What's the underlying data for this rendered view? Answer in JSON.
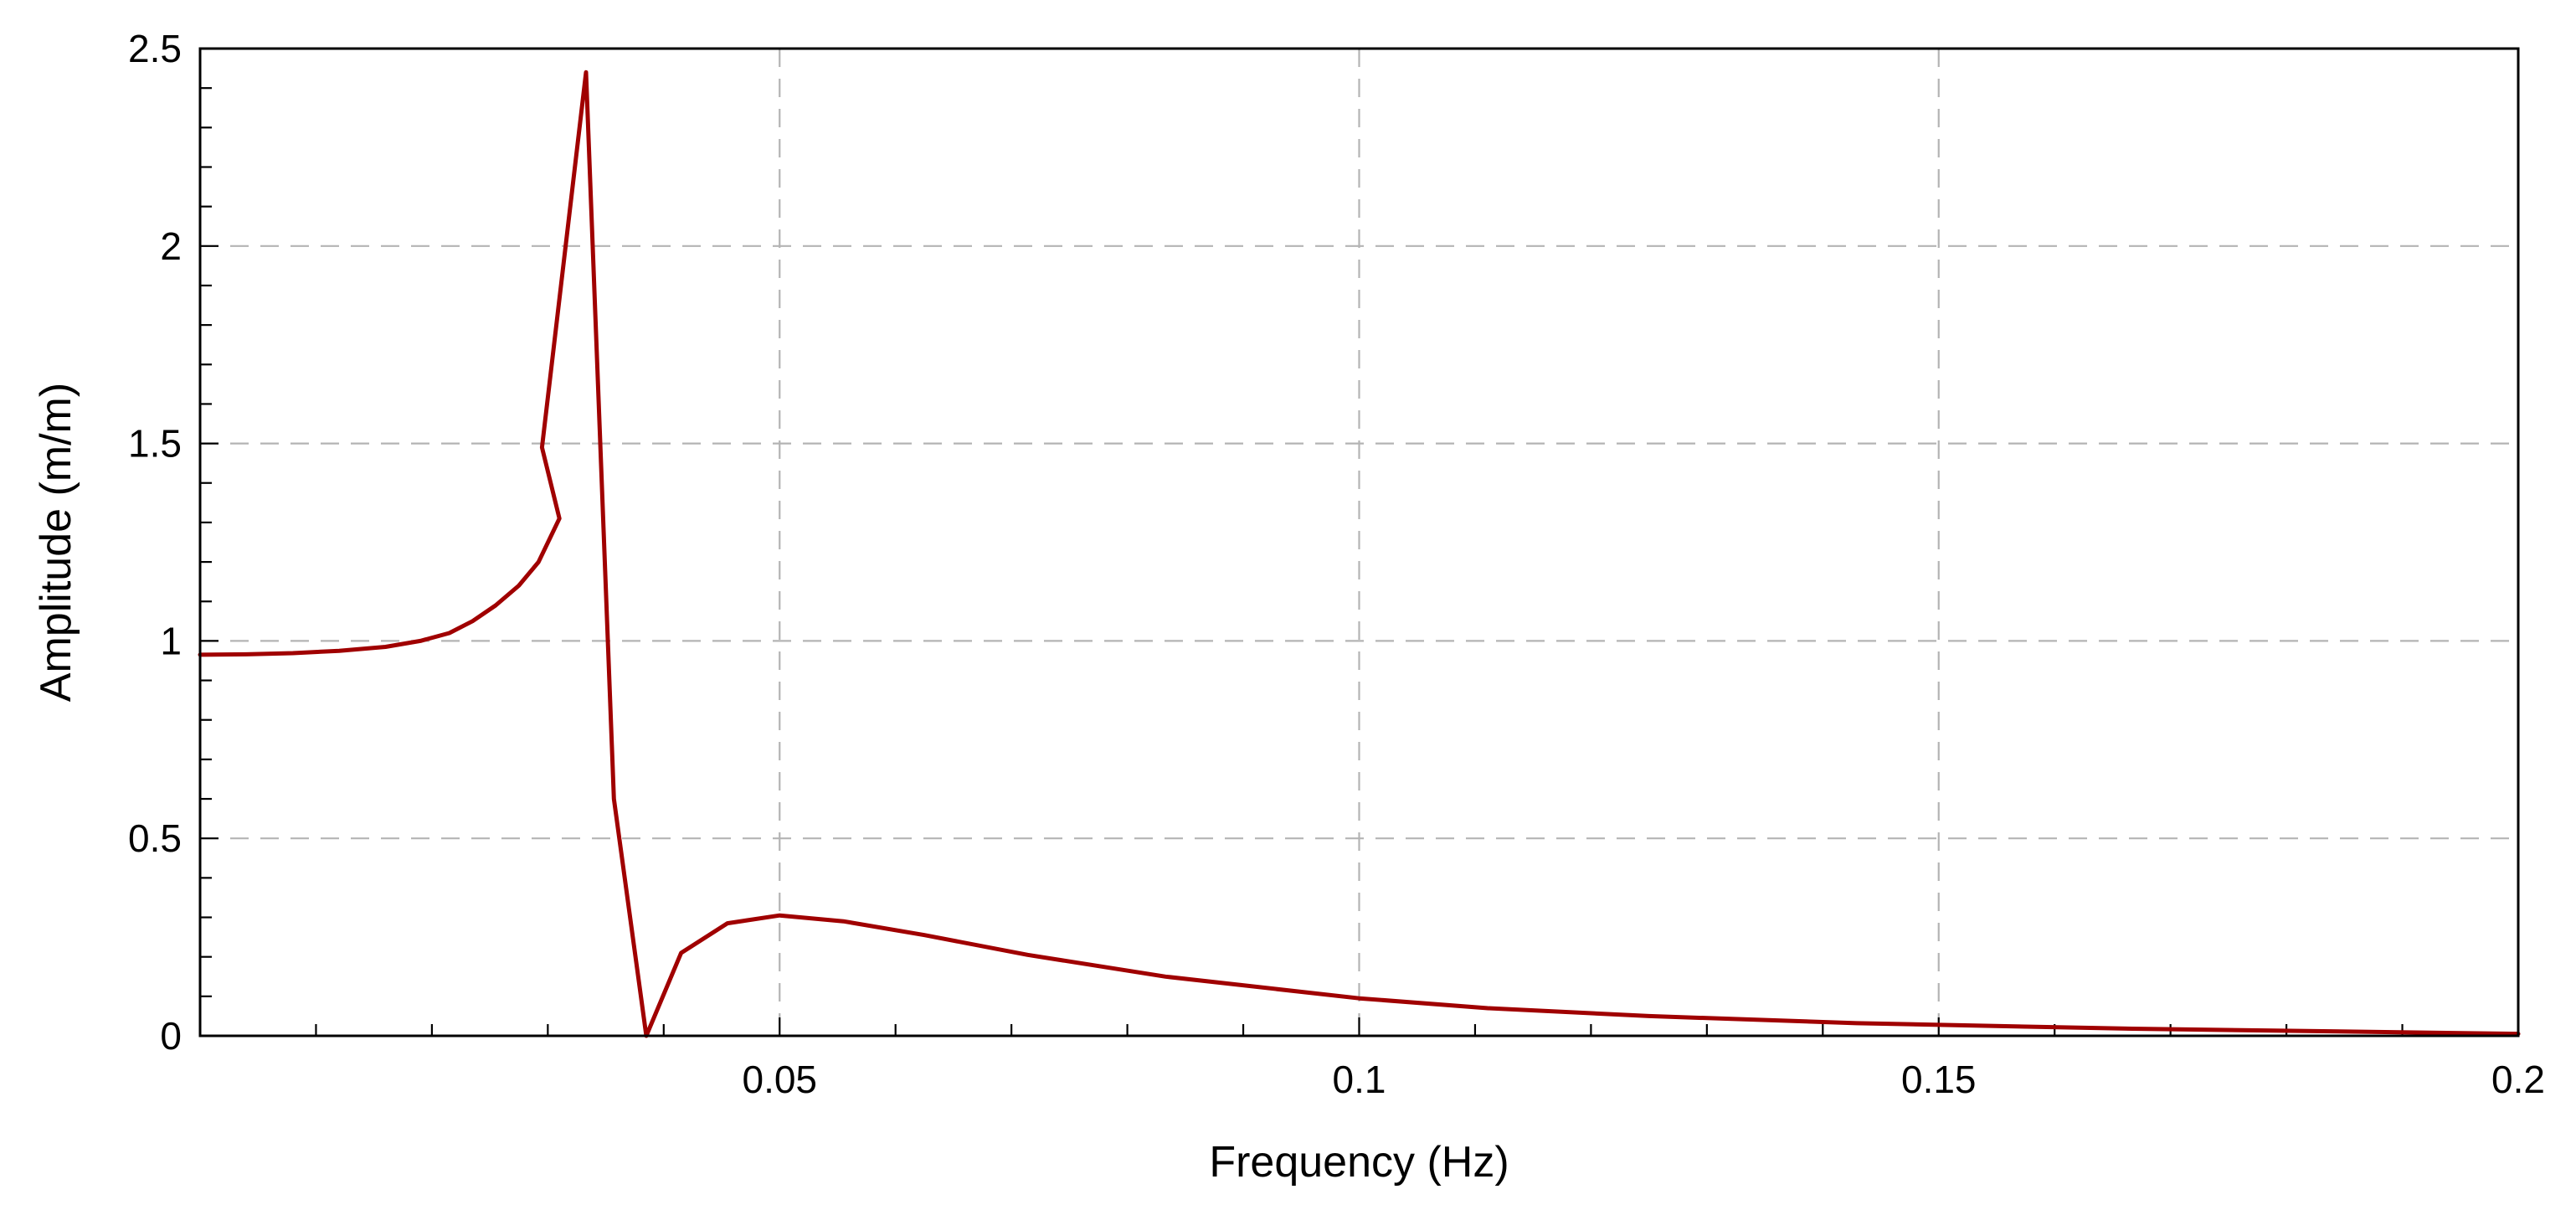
{
  "chart_data": {
    "type": "line",
    "title": "",
    "xlabel": "Frequency (Hz)",
    "ylabel": "Amplitude (m/m)",
    "xlim": [
      0,
      0.2
    ],
    "ylim": [
      0,
      2.5
    ],
    "x_ticks": [
      0.05,
      0.1,
      0.15,
      0.2
    ],
    "x_tick_labels": [
      "0.05",
      "0.1",
      "0.15",
      "0.2"
    ],
    "y_ticks": [
      0,
      0.5,
      1,
      1.5,
      2,
      2.5
    ],
    "y_tick_labels": [
      "0",
      "0.5",
      "1",
      "1.5",
      "2",
      "2.5"
    ],
    "x_minor_step": 0.01,
    "y_minor_step": 0.1,
    "grid": true,
    "legend": "none",
    "series": [
      {
        "color": "#a00000",
        "points": [
          [
            0.0,
            0.965
          ],
          [
            0.004,
            0.966
          ],
          [
            0.008,
            0.969
          ],
          [
            0.012,
            0.975
          ],
          [
            0.016,
            0.985
          ],
          [
            0.019,
            1.0
          ],
          [
            0.0215,
            1.02
          ],
          [
            0.0235,
            1.05
          ],
          [
            0.0255,
            1.09
          ],
          [
            0.0275,
            1.14
          ],
          [
            0.0292,
            1.2
          ],
          [
            0.031,
            1.31
          ],
          [
            0.0295,
            1.49
          ],
          [
            0.0333,
            2.44
          ],
          [
            0.0357,
            0.6
          ],
          [
            0.0385,
            0.0
          ],
          [
            0.0415,
            0.21
          ],
          [
            0.0455,
            0.285
          ],
          [
            0.05,
            0.305
          ],
          [
            0.0555,
            0.29
          ],
          [
            0.0625,
            0.255
          ],
          [
            0.0714,
            0.205
          ],
          [
            0.0833,
            0.15
          ],
          [
            0.1,
            0.095
          ],
          [
            0.1111,
            0.07
          ],
          [
            0.125,
            0.05
          ],
          [
            0.1429,
            0.032
          ],
          [
            0.1667,
            0.018
          ],
          [
            0.2,
            0.005
          ]
        ]
      }
    ]
  }
}
